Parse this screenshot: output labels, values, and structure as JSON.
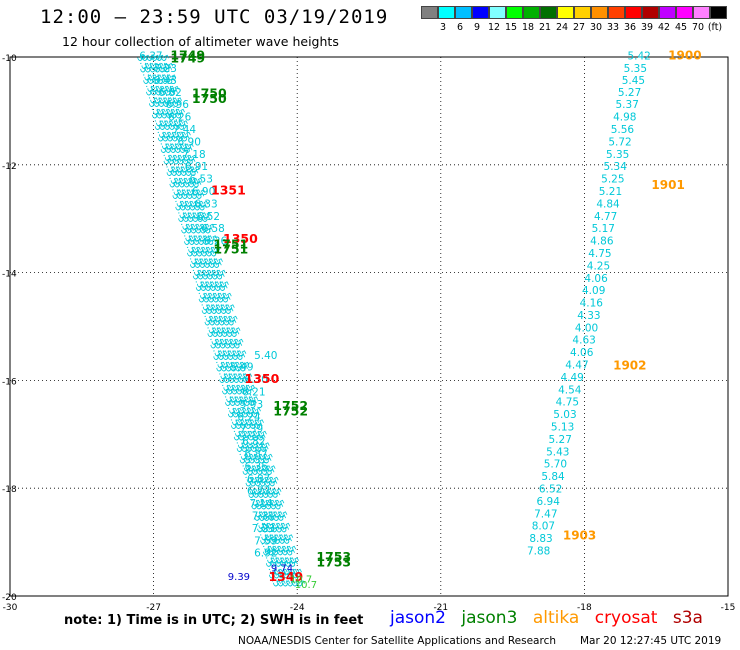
{
  "header": {
    "title": "12:00 – 23:59 UTC 03/19/2019",
    "subtitle": "12 hour collection of altimeter wave heights"
  },
  "colorbar": {
    "colors": [
      "#808080",
      "#00ffff",
      "#00bfff",
      "#0000ff",
      "#80ffff",
      "#00ff00",
      "#00b000",
      "#007000",
      "#ffff00",
      "#ffd000",
      "#ff9000",
      "#ff4000",
      "#ff0000",
      "#b00000",
      "#c000ff",
      "#ff00ff",
      "#ff80ff",
      "#000000"
    ],
    "labels": [
      "3",
      "6",
      "9",
      "12",
      "15",
      "18",
      "21",
      "24",
      "27",
      "30",
      "33",
      "36",
      "39",
      "42",
      "45",
      "70",
      "(ft)"
    ]
  },
  "footer": {
    "note": "note: 1) Time is in UTC; 2) SWH is in feet",
    "legend": [
      {
        "label": "jason2",
        "color": "#0000ff"
      },
      {
        "label": "jason3",
        "color": "#008000"
      },
      {
        "label": "altika",
        "color": "#ff9900"
      },
      {
        "label": "cryosat",
        "color": "#ff0000"
      },
      {
        "label": "s3a",
        "color": "#b00000"
      }
    ],
    "credit": "NOAA/NESDIS Center for Satellite Applications and Research",
    "timestamp": "Mar 20 12:27:45 UTC 2019"
  },
  "chart_data": {
    "type": "scatter",
    "xlim": [
      -30,
      -15
    ],
    "ylim": [
      -20,
      -10
    ],
    "xticks": [
      -30,
      -27,
      -24,
      -21,
      -18,
      -15
    ],
    "yticks": [
      -10,
      -12,
      -14,
      -16,
      -18,
      -20
    ],
    "grid": true,
    "colors": {
      "cyan": "#00c8d8",
      "altika": "#ff9900",
      "cryosat": "#ff0000",
      "jason3": "#008000",
      "jason2": "#0000cc",
      "green_light": "#33cc33"
    },
    "track_east": {
      "color": "cyan",
      "points": [
        {
          "lon": -17.1,
          "lat": -10.05,
          "v": "5.42"
        },
        {
          "lon": -17.18,
          "lat": -10.28,
          "v": "5.35"
        },
        {
          "lon": -17.22,
          "lat": -10.5,
          "v": "5.45"
        },
        {
          "lon": -17.3,
          "lat": -10.72,
          "v": "5.27"
        },
        {
          "lon": -17.35,
          "lat": -10.95,
          "v": "5.37"
        },
        {
          "lon": -17.4,
          "lat": -11.18,
          "v": "4.98"
        },
        {
          "lon": -17.45,
          "lat": -11.41,
          "v": "5.56"
        },
        {
          "lon": -17.5,
          "lat": -11.64,
          "v": "5.72"
        },
        {
          "lon": -17.55,
          "lat": -11.87,
          "v": "5.35"
        },
        {
          "lon": -17.6,
          "lat": -12.1,
          "v": "5.34"
        },
        {
          "lon": -17.65,
          "lat": -12.33,
          "v": "5.25"
        },
        {
          "lon": -17.7,
          "lat": -12.56,
          "v": "5.21"
        },
        {
          "lon": -17.75,
          "lat": -12.79,
          "v": "4.84"
        },
        {
          "lon": -17.8,
          "lat": -13.02,
          "v": "4.77"
        },
        {
          "lon": -17.85,
          "lat": -13.25,
          "v": "5.17"
        },
        {
          "lon": -17.88,
          "lat": -13.48,
          "v": "4.86"
        },
        {
          "lon": -17.92,
          "lat": -13.71,
          "v": "4.75"
        },
        {
          "lon": -17.95,
          "lat": -13.94,
          "v": "4.25"
        },
        {
          "lon": -18.0,
          "lat": -14.17,
          "v": "4.06"
        },
        {
          "lon": -18.05,
          "lat": -14.4,
          "v": "4.09"
        },
        {
          "lon": -18.1,
          "lat": -14.63,
          "v": "4.16"
        },
        {
          "lon": -18.15,
          "lat": -14.86,
          "v": "4.33"
        },
        {
          "lon": -18.2,
          "lat": -15.09,
          "v": "4.00"
        },
        {
          "lon": -18.25,
          "lat": -15.32,
          "v": "4.63"
        },
        {
          "lon": -18.3,
          "lat": -15.55,
          "v": "4.06"
        },
        {
          "lon": -18.4,
          "lat": -15.78,
          "v": "4.47"
        },
        {
          "lon": -18.5,
          "lat": -16.01,
          "v": "4.49"
        },
        {
          "lon": -18.55,
          "lat": -16.24,
          "v": "4.54"
        },
        {
          "lon": -18.6,
          "lat": -16.47,
          "v": "4.75"
        },
        {
          "lon": -18.65,
          "lat": -16.7,
          "v": "5.03"
        },
        {
          "lon": -18.7,
          "lat": -16.93,
          "v": "5.13"
        },
        {
          "lon": -18.75,
          "lat": -17.16,
          "v": "5.27"
        },
        {
          "lon": -18.8,
          "lat": -17.39,
          "v": "5.43"
        },
        {
          "lon": -18.85,
          "lat": -17.62,
          "v": "5.70"
        },
        {
          "lon": -18.9,
          "lat": -17.85,
          "v": "5.84"
        },
        {
          "lon": -18.95,
          "lat": -18.08,
          "v": "6.52"
        },
        {
          "lon": -19.0,
          "lat": -18.31,
          "v": "6.94"
        },
        {
          "lon": -19.05,
          "lat": -18.54,
          "v": "7.47"
        },
        {
          "lon": -19.1,
          "lat": -18.77,
          "v": "8.07"
        },
        {
          "lon": -19.15,
          "lat": -19.0,
          "v": "8.83"
        },
        {
          "lon": -19.2,
          "lat": -19.23,
          "v": "7.88"
        }
      ]
    },
    "track_east_times": [
      {
        "lon": -16.25,
        "lat": -10.05,
        "v": "1900",
        "color": "altika"
      },
      {
        "lon": -16.6,
        "lat": -12.45,
        "v": "1901",
        "color": "altika"
      },
      {
        "lon": -17.4,
        "lat": -15.8,
        "v": "1902",
        "color": "altika"
      },
      {
        "lon": -18.45,
        "lat": -18.95,
        "v": "1903",
        "color": "altika"
      }
    ],
    "track_west_labeled": {
      "color": "cyan",
      "points": [
        {
          "lon": -27.3,
          "lat": -10.05,
          "v": "6.37"
        },
        {
          "lon": -27.0,
          "lat": -10.28,
          "v": "7.23"
        },
        {
          "lon": -27.0,
          "lat": -10.5,
          "v": "6.43"
        },
        {
          "lon": -26.9,
          "lat": -10.72,
          "v": "6.82"
        },
        {
          "lon": -26.75,
          "lat": -10.95,
          "v": "6.96"
        },
        {
          "lon": -26.7,
          "lat": -11.18,
          "v": "6.26"
        },
        {
          "lon": -26.6,
          "lat": -11.41,
          "v": "7.44"
        },
        {
          "lon": -26.5,
          "lat": -11.64,
          "v": "6.90"
        },
        {
          "lon": -26.4,
          "lat": -11.87,
          "v": "7.18"
        },
        {
          "lon": -26.35,
          "lat": -12.1,
          "v": "6.91"
        },
        {
          "lon": -26.25,
          "lat": -12.33,
          "v": "6.53"
        },
        {
          "lon": -26.2,
          "lat": -12.56,
          "v": "6.90"
        },
        {
          "lon": -26.15,
          "lat": -12.79,
          "v": "6.33"
        },
        {
          "lon": -26.1,
          "lat": -13.02,
          "v": "6.52"
        },
        {
          "lon": -26.0,
          "lat": -13.25,
          "v": "6.58"
        },
        {
          "lon": -25.95,
          "lat": -13.48,
          "v": "6.26"
        },
        {
          "lon": -24.9,
          "lat": -15.6,
          "v": "5.40"
        },
        {
          "lon": -25.4,
          "lat": -15.82,
          "v": "5.49"
        },
        {
          "lon": -25.1,
          "lat": -16.05,
          "v": "6.30"
        },
        {
          "lon": -25.15,
          "lat": -16.28,
          "v": "6.21"
        },
        {
          "lon": -25.2,
          "lat": -16.51,
          "v": "5.93"
        },
        {
          "lon": -25.25,
          "lat": -16.74,
          "v": "6.24"
        },
        {
          "lon": -25.2,
          "lat": -16.97,
          "v": "7.39"
        },
        {
          "lon": -25.15,
          "lat": -17.2,
          "v": "6.82"
        },
        {
          "lon": -25.1,
          "lat": -17.43,
          "v": "6.87"
        },
        {
          "lon": -25.1,
          "lat": -17.66,
          "v": "6.35"
        },
        {
          "lon": -25.05,
          "lat": -17.89,
          "v": "6.87"
        },
        {
          "lon": -25.05,
          "lat": -18.12,
          "v": "6.77"
        },
        {
          "lon": -25.0,
          "lat": -18.35,
          "v": "7.14"
        },
        {
          "lon": -24.95,
          "lat": -18.58,
          "v": "7.31"
        },
        {
          "lon": -24.95,
          "lat": -18.81,
          "v": "7.23"
        },
        {
          "lon": -24.9,
          "lat": -19.04,
          "v": "7.59"
        },
        {
          "lon": -24.9,
          "lat": -19.27,
          "v": "6.92"
        }
      ]
    },
    "track_west_bands": [
      {
        "lon_start": -27.35,
        "lat_start": -10.0,
        "lon_end": -24.6,
        "lat_end": -19.6,
        "color": "cyan"
      },
      {
        "lon_start": -27.25,
        "lat_start": -10.0,
        "lon_end": -24.5,
        "lat_end": -19.6,
        "color": "cyan"
      },
      {
        "lon_start": -27.15,
        "lat_start": -10.0,
        "lon_end": -24.4,
        "lat_end": -19.6,
        "color": "cyan"
      },
      {
        "lon_start": -27.05,
        "lat_start": -10.0,
        "lon_end": -24.3,
        "lat_end": -19.6,
        "color": "cyan"
      },
      {
        "lon_start": -26.95,
        "lat_start": -10.0,
        "lon_end": -24.2,
        "lat_end": -19.6,
        "color": "cyan"
      },
      {
        "lon_start": -26.85,
        "lat_start": -10.0,
        "lon_end": -24.1,
        "lat_end": -19.6,
        "color": "cyan"
      }
    ],
    "annotations": [
      {
        "lon": -26.65,
        "lat": -10.05,
        "v": "1749",
        "color": "jason3"
      },
      {
        "lon": -26.65,
        "lat": -10.1,
        "v": "1749",
        "color": "jason3"
      },
      {
        "lon": -26.2,
        "lat": -10.75,
        "v": "1750",
        "color": "jason3"
      },
      {
        "lon": -26.2,
        "lat": -10.85,
        "v": "1750",
        "color": "jason3"
      },
      {
        "lon": -25.8,
        "lat": -12.55,
        "v": "1351",
        "color": "cryosat"
      },
      {
        "lon": -25.55,
        "lat": -13.45,
        "v": "1350",
        "color": "cryosat"
      },
      {
        "lon": -25.75,
        "lat": -13.55,
        "v": "1751",
        "color": "jason3"
      },
      {
        "lon": -25.75,
        "lat": -13.65,
        "v": "1751",
        "color": "jason3"
      },
      {
        "lon": -25.1,
        "lat": -16.05,
        "v": "1350",
        "color": "cryosat"
      },
      {
        "lon": -24.5,
        "lat": -16.55,
        "v": "1752",
        "color": "jason3"
      },
      {
        "lon": -24.5,
        "lat": -16.65,
        "v": "1752",
        "color": "jason3"
      },
      {
        "lon": -23.6,
        "lat": -19.35,
        "v": "1753",
        "color": "jason3"
      },
      {
        "lon": -23.6,
        "lat": -19.45,
        "v": "1753",
        "color": "jason3"
      },
      {
        "lon": -24.55,
        "lat": -19.55,
        "v": "9.74",
        "color": "jason2"
      },
      {
        "lon": -25.45,
        "lat": -19.7,
        "v": "9.39",
        "color": "jason2"
      },
      {
        "lon": -24.6,
        "lat": -19.72,
        "v": "1349",
        "color": "cryosat"
      },
      {
        "lon": -24.15,
        "lat": -19.75,
        "v": "10.7",
        "color": "green_light"
      },
      {
        "lon": -24.05,
        "lat": -19.85,
        "v": "10.7",
        "color": "green_light"
      }
    ]
  }
}
